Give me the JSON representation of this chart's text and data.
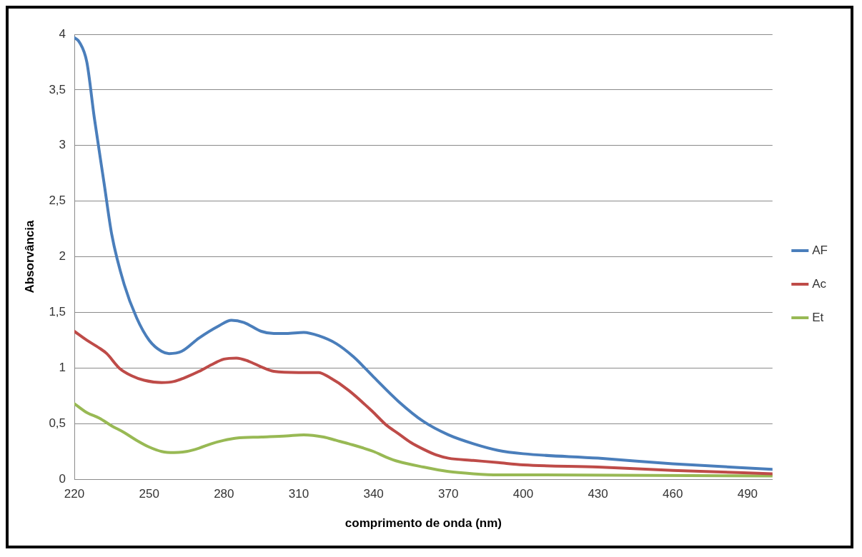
{
  "chart_data": {
    "type": "line",
    "xlabel": "comprimento de onda (nm)",
    "ylabel": "Absorvância",
    "xlim": [
      220,
      500
    ],
    "xticks": [
      220,
      250,
      280,
      310,
      340,
      370,
      400,
      430,
      460,
      490
    ],
    "ylim": [
      0,
      4
    ],
    "yticks": [
      0,
      {
        "value": 0.5,
        "label": "0,5"
      },
      1,
      {
        "value": 1.5,
        "label": "1,5"
      },
      2,
      {
        "value": 2.5,
        "label": "2,5"
      },
      3,
      {
        "value": 3.5,
        "label": "3,5"
      },
      4
    ],
    "grid": "y",
    "legend": "right",
    "marker": "none",
    "line_style": "solid",
    "series": [
      {
        "name": "AF",
        "color": "#4a7ebb",
        "x": [
          220,
          222,
          225,
          228,
          232,
          235,
          240,
          245,
          250,
          255,
          258,
          263,
          270,
          278,
          283,
          288,
          295,
          300,
          305,
          312,
          318,
          325,
          332,
          340,
          350,
          360,
          370,
          380,
          390,
          400,
          430,
          460,
          500
        ],
        "values": [
          3.97,
          3.93,
          3.75,
          3.25,
          2.65,
          2.2,
          1.75,
          1.45,
          1.25,
          1.15,
          1.13,
          1.15,
          1.27,
          1.38,
          1.43,
          1.41,
          1.33,
          1.31,
          1.31,
          1.32,
          1.29,
          1.22,
          1.1,
          0.92,
          0.7,
          0.52,
          0.4,
          0.32,
          0.26,
          0.23,
          0.19,
          0.14,
          0.09
        ]
      },
      {
        "name": "Ac",
        "color": "#be4b48",
        "x": [
          220,
          225,
          230,
          233,
          238,
          243,
          248,
          255,
          260,
          265,
          270,
          275,
          280,
          285,
          290,
          295,
          300,
          310,
          318,
          322,
          330,
          340,
          345,
          350,
          355,
          360,
          365,
          370,
          380,
          390,
          400,
          430,
          460,
          500
        ],
        "values": [
          1.33,
          1.25,
          1.18,
          1.13,
          1.0,
          0.93,
          0.89,
          0.87,
          0.88,
          0.92,
          0.97,
          1.03,
          1.08,
          1.09,
          1.06,
          1.01,
          0.97,
          0.96,
          0.96,
          0.92,
          0.8,
          0.6,
          0.49,
          0.41,
          0.33,
          0.27,
          0.22,
          0.19,
          0.17,
          0.15,
          0.13,
          0.11,
          0.08,
          0.05
        ]
      },
      {
        "name": "Et",
        "color": "#98b954",
        "x": [
          220,
          225,
          230,
          235,
          240,
          245,
          250,
          255,
          260,
          265,
          270,
          275,
          280,
          285,
          295,
          305,
          312,
          320,
          325,
          330,
          340,
          345,
          350,
          360,
          370,
          380,
          390,
          400,
          500
        ],
        "values": [
          0.68,
          0.6,
          0.55,
          0.48,
          0.42,
          0.35,
          0.29,
          0.25,
          0.24,
          0.25,
          0.28,
          0.32,
          0.35,
          0.37,
          0.38,
          0.39,
          0.4,
          0.38,
          0.35,
          0.32,
          0.25,
          0.2,
          0.16,
          0.11,
          0.07,
          0.05,
          0.04,
          0.04,
          0.03
        ]
      }
    ]
  }
}
